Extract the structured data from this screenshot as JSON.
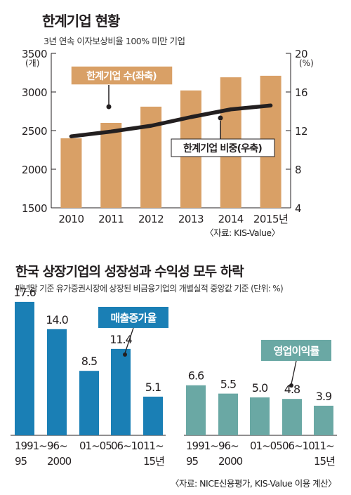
{
  "chart1": {
    "title": "한계기업 현황",
    "subtitle": "3년 연속 이자보상비율 100% 미만 기업",
    "left_unit": "(개)",
    "right_unit": "(%)",
    "left_ticks": [
      "3500",
      "3000",
      "2500",
      "2000",
      "1500"
    ],
    "right_ticks": [
      "20",
      "16",
      "12",
      "8",
      "4"
    ],
    "categories": [
      "2010",
      "2011",
      "2012",
      "2013",
      "2014",
      "2015년"
    ],
    "bar_label": "한계기업 수(좌축)",
    "line_label": "한계기업 비중(우축)",
    "source": "〈자료: KIS-Value〉",
    "colors": {
      "bar": "#d9a066",
      "label_bg": "#d9a066",
      "line": "#231f20"
    }
  },
  "chart2": {
    "title": "한국 상장기업의 성장성과 수익성 모두 하락",
    "subtitle": "매년말 기준 유가증권시장에 상장된 비금융기업의 개별실적 중앙값 기준 (단위: %)",
    "source": "〈자료: NICE신용평가, KIS-Value 이용 계산〉",
    "colors": {
      "sales": "#1a7fb5",
      "profit": "#6aa8a4"
    }
  },
  "chart_data": [
    {
      "type": "bar",
      "title": "한계기업 현황",
      "categories": [
        "2010",
        "2011",
        "2012",
        "2013",
        "2014",
        "2015"
      ],
      "series": [
        {
          "name": "한계기업 수(좌축)",
          "axis": "left",
          "type": "bar",
          "values": [
            2400,
            2600,
            2810,
            3020,
            3190,
            3210
          ]
        },
        {
          "name": "한계기업 비중(우축)",
          "axis": "right",
          "type": "line",
          "values": [
            11.4,
            11.9,
            12.5,
            13.4,
            14.2,
            14.6
          ]
        }
      ],
      "ylim_left": [
        1500,
        3500
      ],
      "ylim_right": [
        4,
        20
      ]
    },
    {
      "type": "bar",
      "title": "한국 상장기업의 성장성과 수익성 모두 하락",
      "ylabel": "%",
      "groups": [
        {
          "name": "매출증가율",
          "categories": [
            "1991~95",
            "96~2000",
            "01~05",
            "06~10",
            "11~15년"
          ],
          "values": [
            17.6,
            14.0,
            8.5,
            11.4,
            5.1
          ],
          "labels": [
            "17.6",
            "14.0",
            "8.5",
            "11.4",
            "5.1"
          ],
          "cat_lines": [
            [
              "1991~",
              "95"
            ],
            [
              "96~",
              "2000"
            ],
            [
              "01~05"
            ],
            [
              "06~10"
            ],
            [
              "11~",
              "15년"
            ]
          ]
        },
        {
          "name": "영업이익률",
          "categories": [
            "1991~95",
            "96~2000",
            "01~05",
            "06~10",
            "11~15년"
          ],
          "values": [
            6.6,
            5.5,
            5.0,
            4.8,
            3.9
          ],
          "labels": [
            "6.6",
            "5.5",
            "5.0",
            "4.8",
            "3.9"
          ],
          "cat_lines": [
            [
              "1991~",
              "95"
            ],
            [
              "96~",
              "2000"
            ],
            [
              "01~05"
            ],
            [
              "06~10"
            ],
            [
              "11~",
              "15년"
            ]
          ]
        }
      ]
    }
  ]
}
